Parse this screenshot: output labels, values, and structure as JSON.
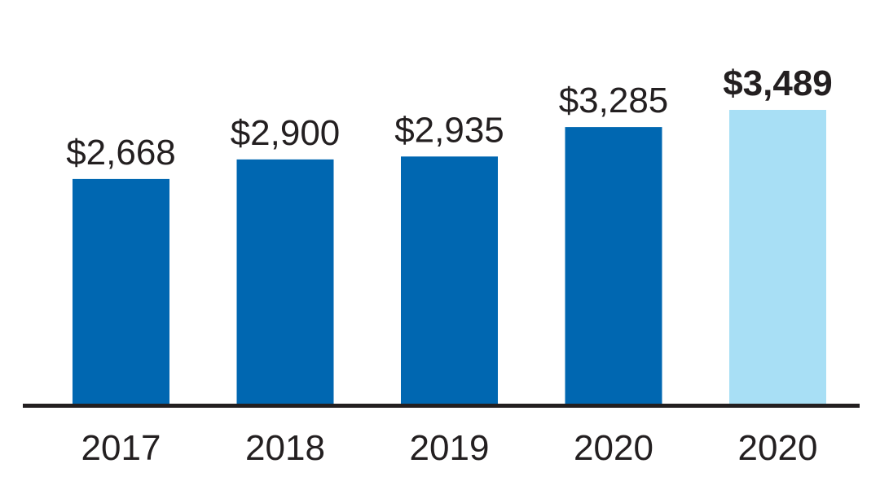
{
  "chart_data": {
    "type": "bar",
    "categories": [
      "2017",
      "2018",
      "2019",
      "2020",
      "2020"
    ],
    "values": [
      2668,
      2900,
      2935,
      3285,
      3489
    ],
    "data_labels": [
      "$2,668",
      "$2,900",
      "$2,935",
      "$3,285",
      "$3,489"
    ],
    "highlight_index": 4,
    "ylim": [
      0,
      3489
    ],
    "grid": false,
    "title": "",
    "xlabel": "",
    "ylabel": ""
  },
  "colors": {
    "bar": "#0067b1",
    "highlight_bar": "#a8dff5",
    "axis": "#231f20",
    "text": "#231f20"
  }
}
